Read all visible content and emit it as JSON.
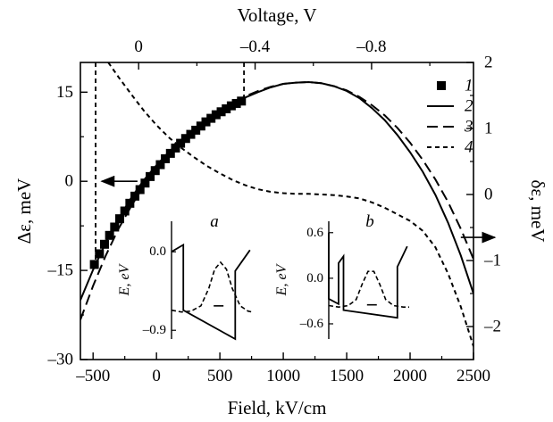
{
  "chart_data": {
    "type": "line",
    "title": "",
    "colors": {
      "foreground": "#000000",
      "background": "#ffffff"
    },
    "axes": {
      "x_bottom": {
        "label": "Field, kV/cm",
        "range": [
          -600,
          2500
        ],
        "ticks": [
          -500,
          0,
          500,
          1000,
          1500,
          2000,
          2500
        ],
        "tick_labels": [
          "–500",
          "0",
          "500",
          "1000",
          "1500",
          "2000",
          "2500"
        ]
      },
      "x_top": {
        "label": "Voltage, V",
        "range": [
          0.2,
          -1.15
        ],
        "ticks": [
          0,
          -0.4,
          -0.8
        ],
        "tick_labels": [
          "0",
          "–0.4",
          "–0.8"
        ]
      },
      "y_left": {
        "label": "Δε, meV",
        "range": [
          -30,
          20
        ],
        "ticks": [
          -30,
          -15,
          0,
          15
        ],
        "tick_labels": [
          "–30",
          "–15",
          "0",
          "15"
        ]
      },
      "y_right": {
        "label": "δε, meV",
        "range": [
          -2.5,
          2
        ],
        "ticks": [
          -2,
          -1,
          0,
          1,
          2
        ],
        "tick_labels": [
          "–2",
          "–1",
          "0",
          "1",
          "2"
        ]
      }
    },
    "grid": false,
    "legend": {
      "position": "top-right",
      "entries": [
        "1",
        "2",
        "3",
        "4"
      ]
    },
    "series": [
      {
        "name": "1",
        "style": "square-markers",
        "y_axis": "left",
        "x": [
          -490,
          -450,
          -410,
          -370,
          -330,
          -290,
          -250,
          -210,
          -170,
          -130,
          -90,
          -50,
          -10,
          30,
          70,
          110,
          150,
          190,
          230,
          270,
          310,
          350,
          390,
          430,
          470,
          510,
          550,
          590,
          630,
          670
        ],
        "y": [
          -14,
          -12.2,
          -10.6,
          -9.1,
          -7.7,
          -6.3,
          -5.0,
          -3.7,
          -2.5,
          -1.4,
          -0.3,
          0.8,
          1.8,
          2.8,
          3.8,
          4.7,
          5.6,
          6.4,
          7.2,
          7.9,
          8.6,
          9.3,
          10.0,
          10.6,
          11.2,
          11.7,
          12.2,
          12.7,
          13.1,
          13.5
        ]
      },
      {
        "name": "2",
        "style": "solid",
        "y_axis": "left",
        "x": [
          -600,
          -500,
          -400,
          -300,
          -200,
          -100,
          0,
          100,
          200,
          300,
          400,
          500,
          600,
          700,
          800,
          900,
          1000,
          1100,
          1200,
          1300,
          1400,
          1500,
          1600,
          1700,
          1800,
          1900,
          2000,
          2100,
          2200,
          2300,
          2400,
          2500
        ],
        "y": [
          -20.0,
          -14.9,
          -10.3,
          -6.3,
          -2.8,
          0.2,
          2.7,
          5.0,
          7.0,
          8.8,
          10.4,
          11.8,
          13.0,
          14.1,
          15.0,
          15.8,
          16.4,
          16.6,
          16.7,
          16.5,
          16.0,
          15.2,
          14.0,
          12.3,
          10.3,
          7.8,
          4.9,
          1.6,
          -2.3,
          -7.0,
          -12.5,
          -18.9
        ]
      },
      {
        "name": "3",
        "style": "long-dash",
        "y_axis": "left",
        "x": [
          -600,
          -500,
          -400,
          -300,
          -200,
          -100,
          0,
          100,
          200,
          300,
          400,
          500,
          600,
          700,
          800,
          900,
          1000,
          1100,
          1200,
          1300,
          1400,
          1500,
          1600,
          1700,
          1800,
          1900,
          2000,
          2100,
          2200,
          2300,
          2400,
          2500
        ],
        "y": [
          -23.3,
          -17.6,
          -12.5,
          -8.0,
          -4.2,
          -0.8,
          2.0,
          4.6,
          6.8,
          8.8,
          10.5,
          12.0,
          13.2,
          14.3,
          15.2,
          15.9,
          16.4,
          16.6,
          16.7,
          16.5,
          16.0,
          15.3,
          14.2,
          12.8,
          11.1,
          9.0,
          6.5,
          3.6,
          0.3,
          -3.5,
          -8.0,
          -13.1
        ]
      },
      {
        "name": "4",
        "style": "short-dash",
        "y_axis": "right",
        "x": [
          -380,
          -300,
          -200,
          -100,
          0,
          100,
          200,
          300,
          400,
          500,
          600,
          700,
          800,
          900,
          1000,
          1100,
          1200,
          1300,
          1400,
          1500,
          1600,
          1700,
          1800,
          1900,
          2000,
          2100,
          2200,
          2300,
          2400,
          2500
        ],
        "y": [
          2.0,
          1.78,
          1.52,
          1.27,
          1.05,
          0.86,
          0.7,
          0.56,
          0.43,
          0.32,
          0.22,
          0.14,
          0.08,
          0.04,
          0.02,
          0.01,
          0.01,
          0.0,
          -0.01,
          -0.03,
          -0.06,
          -0.12,
          -0.2,
          -0.3,
          -0.4,
          -0.55,
          -0.8,
          -1.2,
          -1.7,
          -2.3
        ]
      },
      {
        "name": "vertical dashed markers",
        "style": "short-dash",
        "y_axis": "left",
        "x_positions": [
          -480,
          690
        ]
      }
    ],
    "annotations": {
      "arrows": [
        {
          "points_to": "y_left",
          "x": -150,
          "y": 0
        },
        {
          "points_to": "y_right",
          "x": 2400,
          "y_right": -0.65
        }
      ]
    },
    "insets": [
      {
        "letter": "a",
        "y_label": "E, eV",
        "y_ticks": [
          "0.0",
          "–0.9"
        ],
        "y_range": [
          -1.0,
          0.35
        ],
        "y_tick_values": [
          0.0,
          -0.9
        ],
        "band": [
          [
            0,
            0
          ],
          [
            12,
            0.08
          ],
          [
            12,
            -0.67
          ],
          [
            65,
            -1.0
          ],
          [
            65,
            -0.22
          ],
          [
            80,
            0.02
          ]
        ],
        "wave": [
          [
            0,
            -0.67
          ],
          [
            10,
            -0.69
          ],
          [
            20,
            -0.68
          ],
          [
            30,
            -0.62
          ],
          [
            38,
            -0.42
          ],
          [
            44,
            -0.2
          ],
          [
            50,
            -0.12
          ],
          [
            56,
            -0.2
          ],
          [
            62,
            -0.42
          ],
          [
            70,
            -0.62
          ],
          [
            78,
            -0.68
          ],
          [
            82,
            -0.69
          ]
        ],
        "level": [
          [
            43,
            -0.62
          ],
          [
            53,
            -0.62
          ]
        ]
      },
      {
        "letter": "b",
        "y_label": "E, eV",
        "y_ticks": [
          "0.6",
          "0.0",
          "–0.6"
        ],
        "y_range": [
          -0.8,
          0.75
        ],
        "y_tick_values": [
          0.6,
          0.0,
          -0.6
        ],
        "band": [
          [
            0,
            0.6
          ],
          [
            0,
            -0.27
          ],
          [
            10,
            -0.34
          ],
          [
            10,
            0.2
          ],
          [
            15,
            0.29
          ],
          [
            15,
            -0.42
          ],
          [
            70,
            -0.52
          ],
          [
            70,
            0.15
          ],
          [
            80,
            0.42
          ]
        ],
        "wave": [
          [
            0,
            -0.36
          ],
          [
            10,
            -0.38
          ],
          [
            20,
            -0.36
          ],
          [
            28,
            -0.28
          ],
          [
            34,
            -0.08
          ],
          [
            40,
            0.09
          ],
          [
            46,
            0.09
          ],
          [
            52,
            -0.08
          ],
          [
            58,
            -0.28
          ],
          [
            66,
            -0.36
          ],
          [
            76,
            -0.38
          ],
          [
            82,
            -0.38
          ]
        ],
        "level": [
          [
            39,
            -0.35
          ],
          [
            49,
            -0.35
          ]
        ]
      }
    ]
  }
}
